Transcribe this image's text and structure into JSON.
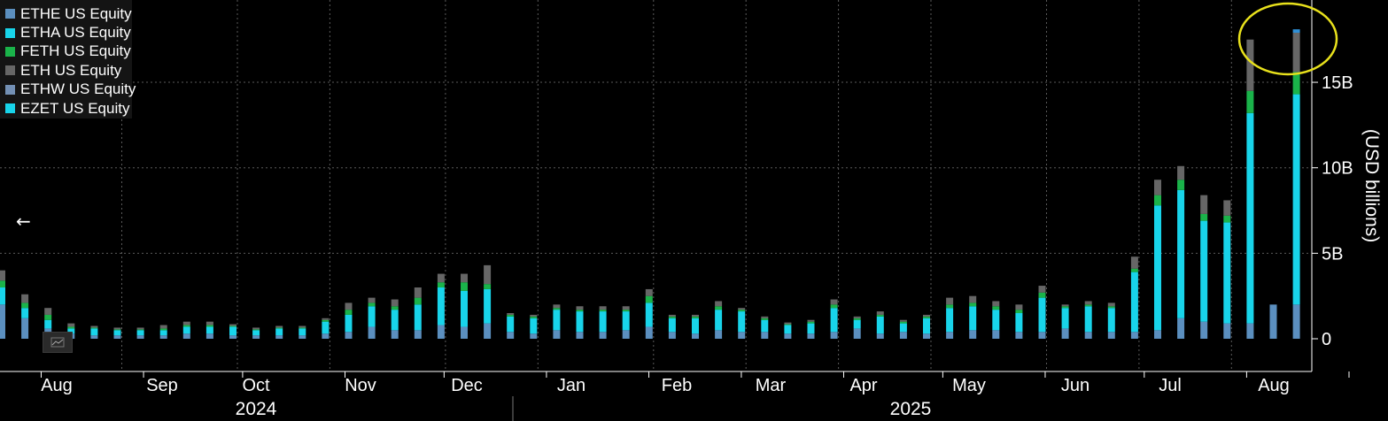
{
  "legend": [
    {
      "name": "ETHE US Equity",
      "color": "#5b8fbf"
    },
    {
      "name": "ETHA US Equity",
      "color": "#18d4ea"
    },
    {
      "name": "FETH US Equity",
      "color": "#1ab34a"
    },
    {
      "name": "ETH US Equity",
      "color": "#666666"
    },
    {
      "name": "ETHW US Equity",
      "color": "#7390b5"
    },
    {
      "name": "EZET US Equity",
      "color": "#18d4ea"
    }
  ],
  "chart_data": {
    "type": "bar",
    "stacked": true,
    "ylabel": "(USD billions)",
    "y_ticks": [
      "0",
      "5B",
      "10B",
      "15B"
    ],
    "y_tick_values": [
      0,
      5,
      10,
      15
    ],
    "ylim": [
      -1.9,
      19.5
    ],
    "grid": true,
    "legend_position": "top-left",
    "month_labels": [
      "Aug",
      "Sep",
      "Oct",
      "Nov",
      "Dec",
      "Jan",
      "Feb",
      "Mar",
      "Apr",
      "May",
      "Jun",
      "Jul",
      "Aug"
    ],
    "year_labels": [
      "2024",
      "2025"
    ],
    "series_names": [
      "ETHE US Equity",
      "ETHA US Equity",
      "FETH US Equity",
      "ETH US Equity"
    ],
    "bar_weeks": [
      "2024-07-19",
      "2024-07-26",
      "2024-08-02",
      "2024-08-09",
      "2024-08-16",
      "2024-08-23",
      "2024-08-30",
      "2024-09-06",
      "2024-09-13",
      "2024-09-20",
      "2024-09-27",
      "2024-10-04",
      "2024-10-11",
      "2024-10-18",
      "2024-10-25",
      "2024-11-01",
      "2024-11-08",
      "2024-11-15",
      "2024-11-22",
      "2024-11-29",
      "2024-12-06",
      "2024-12-13",
      "2024-12-20",
      "2024-12-27",
      "2025-01-03",
      "2025-01-10",
      "2025-01-17",
      "2025-01-24",
      "2025-01-31",
      "2025-02-07",
      "2025-02-14",
      "2025-02-21",
      "2025-02-28",
      "2025-03-07",
      "2025-03-14",
      "2025-03-21",
      "2025-03-28",
      "2025-04-04",
      "2025-04-11",
      "2025-04-18",
      "2025-04-25",
      "2025-05-02",
      "2025-05-09",
      "2025-05-16",
      "2025-05-23",
      "2025-05-30",
      "2025-06-06",
      "2025-06-13",
      "2025-06-20",
      "2025-06-27",
      "2025-07-04",
      "2025-07-11",
      "2025-07-18",
      "2025-07-25",
      "2025-08-01",
      "2025-08-08",
      "2025-08-15"
    ],
    "series": [
      {
        "name": "ETHE US Equity",
        "values": [
          2.0,
          1.2,
          0.6,
          0.3,
          0.2,
          0.2,
          0.2,
          0.2,
          0.3,
          0.3,
          0.2,
          0.2,
          0.2,
          0.2,
          0.3,
          0.4,
          0.7,
          0.5,
          0.5,
          0.8,
          0.7,
          0.9,
          0.4,
          0.3,
          0.5,
          0.4,
          0.4,
          0.5,
          0.7,
          0.4,
          0.3,
          0.5,
          0.4,
          0.4,
          0.3,
          0.3,
          0.4,
          0.6,
          0.3,
          0.4,
          0.3,
          0.4,
          0.5,
          0.5,
          0.4,
          0.4,
          0.6,
          0.4,
          0.4,
          0.4,
          0.5,
          1.2,
          1.0,
          0.9,
          0.9,
          2.0,
          0
        ]
      },
      {
        "name": "ETHA US Equity",
        "values": [
          1.0,
          0.6,
          0.5,
          0.3,
          0.4,
          0.3,
          0.3,
          0.3,
          0.4,
          0.4,
          0.5,
          0.3,
          0.4,
          0.4,
          0.7,
          1.0,
          1.2,
          1.2,
          1.5,
          2.2,
          2.1,
          2.0,
          0.9,
          0.9,
          1.2,
          1.2,
          1.2,
          1.1,
          1.4,
          0.8,
          0.9,
          1.2,
          1.2,
          0.7,
          0.5,
          0.6,
          1.4,
          0.5,
          1.0,
          0.5,
          0.9,
          1.4,
          1.4,
          1.2,
          1.1,
          2.0,
          1.2,
          1.5,
          1.4,
          3.5,
          7.3,
          7.5,
          5.9,
          5.9,
          12.3,
          0,
          0
        ]
      },
      {
        "name": "FETH US Equity",
        "values": [
          0.4,
          0.3,
          0.3,
          0.1,
          0.05,
          0.05,
          0.05,
          0.1,
          0.1,
          0.1,
          0.05,
          0.05,
          0.05,
          0.05,
          0.1,
          0.3,
          0.2,
          0.2,
          0.4,
          0.3,
          0.5,
          0.3,
          0.1,
          0.1,
          0.1,
          0.1,
          0.1,
          0.1,
          0.4,
          0.1,
          0.1,
          0.2,
          0.1,
          0.1,
          0.05,
          0.1,
          0.2,
          0.1,
          0.1,
          0.1,
          0.1,
          0.2,
          0.2,
          0.2,
          0.2,
          0.3,
          0.1,
          0.1,
          0.1,
          0.2,
          0.6,
          0.6,
          0.4,
          0.4,
          1.3,
          0,
          0
        ]
      },
      {
        "name": "ETH US Equity",
        "values": [
          0.6,
          0.5,
          0.4,
          0.2,
          0.1,
          0.1,
          0.1,
          0.2,
          0.2,
          0.2,
          0.1,
          0.1,
          0.1,
          0.1,
          0.1,
          0.4,
          0.3,
          0.4,
          0.6,
          0.5,
          0.5,
          1.1,
          0.1,
          0.1,
          0.2,
          0.2,
          0.2,
          0.2,
          0.4,
          0.1,
          0.1,
          0.3,
          0.1,
          0.1,
          0.1,
          0.1,
          0.3,
          0.1,
          0.2,
          0.1,
          0.1,
          0.4,
          0.4,
          0.3,
          0.3,
          0.4,
          0.1,
          0.2,
          0.2,
          0.7,
          0.9,
          0.8,
          1.1,
          0.9,
          3.0,
          0,
          0
        ]
      }
    ],
    "annotations": [
      {
        "type": "highlight-ellipse",
        "target_week": "2025-08-08",
        "color": "#e8e11c"
      }
    ]
  }
}
